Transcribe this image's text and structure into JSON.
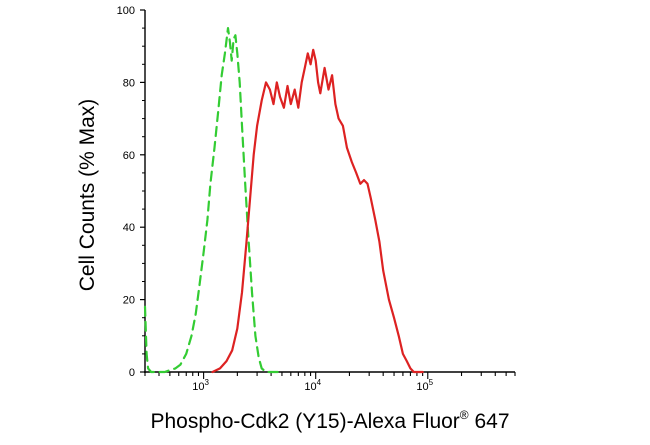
{
  "chart_data": {
    "type": "line",
    "title": "",
    "xlabel": {
      "main": "Phospho-Cdk2 (Y15)-Alexa Fluor",
      "mark": "®",
      "tail": " 647"
    },
    "ylabel": "Cell Counts (% Max)",
    "x_scale": "log",
    "xlim": [
      300,
      600000
    ],
    "ylim": [
      0,
      100
    ],
    "yticks": [
      "0",
      "20",
      "40",
      "60",
      "80",
      "100"
    ],
    "xticks": [
      {
        "base": "10",
        "exp": "3",
        "value": 1000
      },
      {
        "base": "10",
        "exp": "4",
        "value": 10000
      },
      {
        "base": "10",
        "exp": "5",
        "value": 100000
      }
    ],
    "grid": false,
    "series": [
      {
        "style": "dashed",
        "color": "#33cc33",
        "x": [
          300,
          310,
          320,
          340,
          370,
          400,
          450,
          500,
          560,
          620,
          700,
          780,
          850,
          920,
          1000,
          1080,
          1150,
          1250,
          1350,
          1450,
          1550,
          1650,
          1720,
          1780,
          1850,
          1920,
          2000,
          2100,
          2200,
          2350,
          2500,
          2700,
          2900,
          3100,
          3300,
          3600,
          4000,
          4500,
          5000
        ],
        "y": [
          18,
          5,
          1,
          0,
          0,
          0,
          0,
          0.5,
          1,
          2,
          5,
          10,
          16,
          24,
          33,
          42,
          52,
          62,
          72,
          82,
          88,
          95,
          91,
          86,
          92,
          93,
          88,
          80,
          68,
          52,
          38,
          22,
          10,
          4,
          1,
          0,
          0,
          0,
          0
        ]
      },
      {
        "style": "solid",
        "color": "#dd2222",
        "x": [
          1200,
          1400,
          1600,
          1800,
          2000,
          2200,
          2400,
          2600,
          2800,
          3000,
          3300,
          3600,
          3900,
          4200,
          4500,
          4800,
          5200,
          5600,
          6000,
          6500,
          7000,
          7500,
          8000,
          8500,
          9000,
          9500,
          10000,
          10500,
          11000,
          12000,
          13000,
          14000,
          15000,
          16000,
          17500,
          19000,
          21000,
          23000,
          25000,
          27000,
          29000,
          31000,
          34000,
          37000,
          40000,
          45000,
          50000,
          55000,
          60000,
          65000,
          70000,
          75000,
          80000,
          85000,
          90000
        ],
        "y": [
          0,
          1,
          3,
          6,
          12,
          22,
          35,
          48,
          60,
          68,
          75,
          80,
          78,
          74,
          80,
          76,
          73,
          79,
          74,
          78,
          73,
          80,
          84,
          88,
          85,
          89,
          86,
          80,
          77,
          84,
          78,
          82,
          74,
          70,
          68,
          62,
          58,
          55,
          52,
          53,
          52,
          48,
          42,
          36,
          28,
          20,
          15,
          10,
          5,
          3,
          1,
          0,
          0,
          0,
          0
        ]
      }
    ]
  }
}
